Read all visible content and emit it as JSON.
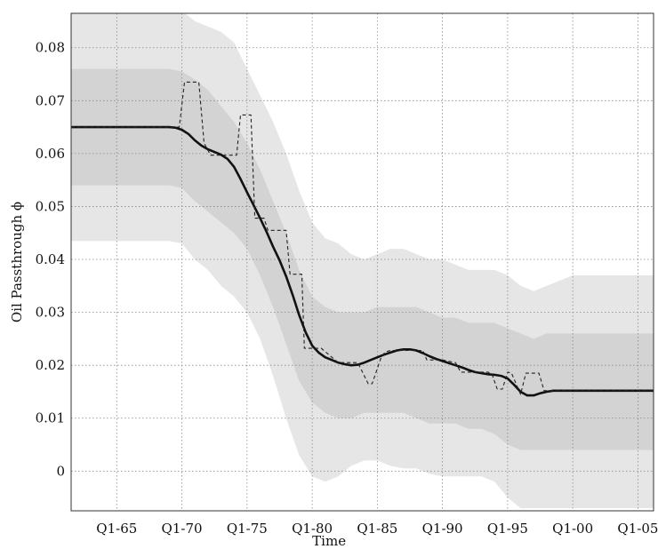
{
  "chart_data": {
    "type": "line",
    "title": "",
    "xlabel": "Time",
    "ylabel": "Oil Passthrough ϕ",
    "x_ticks": [
      {
        "label": "Q1-65",
        "year": 1965
      },
      {
        "label": "Q1-70",
        "year": 1970
      },
      {
        "label": "Q1-75",
        "year": 1975
      },
      {
        "label": "Q1-80",
        "year": 1980
      },
      {
        "label": "Q1-85",
        "year": 1985
      },
      {
        "label": "Q1-90",
        "year": 1990
      },
      {
        "label": "Q1-95",
        "year": 1995
      },
      {
        "label": "Q1-00",
        "year": 2000
      },
      {
        "label": "Q1-05",
        "year": 2005
      }
    ],
    "y_ticks": [
      {
        "label": "0",
        "value": 0
      },
      {
        "label": "0.01",
        "value": 0.01
      },
      {
        "label": "0.02",
        "value": 0.02
      },
      {
        "label": "0.03",
        "value": 0.03
      },
      {
        "label": "0.04",
        "value": 0.04
      },
      {
        "label": "0.05",
        "value": 0.05
      },
      {
        "label": "0.06",
        "value": 0.06
      },
      {
        "label": "0.07",
        "value": 0.07
      },
      {
        "label": "0.08",
        "value": 0.08
      }
    ],
    "xlim": [
      1961.5,
      2006.2
    ],
    "ylim": [
      -0.0075,
      0.0865
    ],
    "grid": true,
    "legend": "none",
    "colors": {
      "outer_band": "#e6e6e6",
      "inner_band": "#d3d3d3",
      "median_line": "#111111",
      "dashed_line": "#222222"
    },
    "series": [
      {
        "kind": "band_outer",
        "x": [
          1961.5,
          1965,
          1969,
          1970,
          1971,
          1972,
          1973,
          1974,
          1975,
          1976,
          1977,
          1978,
          1979,
          1980,
          1981,
          1982,
          1983,
          1984,
          1985,
          1986,
          1987,
          1988,
          1989,
          1990,
          1991,
          1992,
          1993,
          1994,
          1995,
          1996,
          1997,
          1998,
          1999,
          2000,
          2006.2
        ],
        "upper": [
          0.087,
          0.087,
          0.087,
          0.087,
          0.085,
          0.084,
          0.083,
          0.081,
          0.076,
          0.071,
          0.066,
          0.06,
          0.053,
          0.047,
          0.044,
          0.043,
          0.041,
          0.04,
          0.041,
          0.042,
          0.042,
          0.041,
          0.04,
          0.04,
          0.039,
          0.038,
          0.038,
          0.038,
          0.037,
          0.035,
          0.034,
          0.035,
          0.036,
          0.037,
          0.037
        ],
        "lower": [
          0.0435,
          0.0435,
          0.0435,
          0.043,
          0.04,
          0.038,
          0.035,
          0.033,
          0.03,
          0.025,
          0.018,
          0.01,
          0.003,
          -0.001,
          -0.002,
          -0.001,
          0.001,
          0.002,
          0.002,
          0.001,
          0.0005,
          0.0005,
          -0.0005,
          -0.001,
          -0.001,
          -0.001,
          -0.001,
          -0.002,
          -0.005,
          -0.007,
          -0.007,
          -0.007,
          -0.007,
          -0.007,
          -0.007
        ]
      },
      {
        "kind": "band_inner",
        "x": [
          1961.5,
          1965,
          1969,
          1970,
          1971,
          1972,
          1973,
          1974,
          1975,
          1976,
          1977,
          1978,
          1979,
          1980,
          1981,
          1982,
          1983,
          1984,
          1985,
          1986,
          1987,
          1988,
          1989,
          1990,
          1991,
          1992,
          1993,
          1994,
          1995,
          1996,
          1997,
          1998,
          1999,
          2000,
          2006.2
        ],
        "upper": [
          0.076,
          0.076,
          0.076,
          0.0755,
          0.074,
          0.072,
          0.069,
          0.066,
          0.062,
          0.057,
          0.051,
          0.045,
          0.038,
          0.033,
          0.031,
          0.03,
          0.03,
          0.03,
          0.031,
          0.031,
          0.031,
          0.031,
          0.03,
          0.029,
          0.029,
          0.028,
          0.028,
          0.028,
          0.027,
          0.026,
          0.025,
          0.026,
          0.026,
          0.026,
          0.026
        ],
        "lower": [
          0.054,
          0.054,
          0.054,
          0.0535,
          0.051,
          0.049,
          0.047,
          0.045,
          0.042,
          0.037,
          0.031,
          0.024,
          0.017,
          0.013,
          0.011,
          0.01,
          0.01,
          0.011,
          0.011,
          0.011,
          0.011,
          0.01,
          0.009,
          0.009,
          0.009,
          0.008,
          0.008,
          0.007,
          0.005,
          0.004,
          0.004,
          0.004,
          0.004,
          0.004,
          0.004
        ]
      },
      {
        "kind": "median_line",
        "x": [
          1961.5,
          1965,
          1969,
          1969.5,
          1970,
          1970.5,
          1971,
          1971.5,
          1972,
          1972.5,
          1973,
          1973.5,
          1974,
          1974.5,
          1975,
          1975.5,
          1976,
          1976.5,
          1977,
          1977.5,
          1978,
          1978.5,
          1979,
          1979.5,
          1980,
          1980.5,
          1981,
          1981.5,
          1982,
          1982.5,
          1983,
          1983.5,
          1984,
          1984.5,
          1985,
          1985.5,
          1986,
          1986.5,
          1987,
          1987.5,
          1988,
          1988.5,
          1989,
          1989.5,
          1990,
          1990.5,
          1991,
          1991.5,
          1992,
          1992.5,
          1993,
          1993.5,
          1994,
          1994.5,
          1995,
          1995.5,
          1996,
          1996.5,
          1997,
          1997.5,
          1998,
          1998.5,
          1999,
          2000,
          2006.2
        ],
        "y": [
          0.065,
          0.065,
          0.065,
          0.0649,
          0.0645,
          0.0637,
          0.0625,
          0.0615,
          0.0608,
          0.0603,
          0.0598,
          0.059,
          0.0575,
          0.0552,
          0.0527,
          0.0503,
          0.0478,
          0.0452,
          0.0424,
          0.0398,
          0.0368,
          0.0333,
          0.0295,
          0.0262,
          0.0237,
          0.0224,
          0.0215,
          0.021,
          0.0205,
          0.0202,
          0.02,
          0.0201,
          0.0205,
          0.021,
          0.0215,
          0.022,
          0.0224,
          0.0228,
          0.023,
          0.023,
          0.0228,
          0.0223,
          0.0217,
          0.0212,
          0.0208,
          0.0204,
          0.02,
          0.0196,
          0.0191,
          0.0187,
          0.0185,
          0.0183,
          0.0182,
          0.018,
          0.0175,
          0.0163,
          0.015,
          0.0143,
          0.0143,
          0.0147,
          0.015,
          0.0152,
          0.0152,
          0.0152,
          0.0152
        ]
      },
      {
        "kind": "dashed_line",
        "x": [
          1961.5,
          1969.8,
          1970.2,
          1970.5,
          1971.3,
          1971.7,
          1972.2,
          1974.2,
          1974.5,
          1975.3,
          1975.6,
          1976.3,
          1976.6,
          1978.0,
          1978.3,
          1979.2,
          1979.4,
          1980.4,
          1980.7,
          1982.0,
          1983.5,
          1984.3,
          1984.6,
          1985.3,
          1985.6,
          1986.0,
          1987.5,
          1988.5,
          1988.8,
          1990.0,
          1991.0,
          1991.4,
          1993.5,
          1993.8,
          1994.2,
          1994.6,
          1995.0,
          1995.3,
          1996.0,
          1996.4,
          1997.4,
          1997.8,
          2006.2
        ],
        "y": [
          0.065,
          0.065,
          0.0735,
          0.0735,
          0.0735,
          0.062,
          0.0597,
          0.0597,
          0.0673,
          0.0673,
          0.0478,
          0.0478,
          0.0455,
          0.0455,
          0.0372,
          0.0372,
          0.0232,
          0.0232,
          0.0232,
          0.0205,
          0.0205,
          0.0165,
          0.0165,
          0.0215,
          0.0225,
          0.0228,
          0.0228,
          0.0228,
          0.021,
          0.021,
          0.0205,
          0.0187,
          0.0187,
          0.0183,
          0.0155,
          0.0155,
          0.0187,
          0.0185,
          0.0145,
          0.0185,
          0.0185,
          0.0152,
          0.0152
        ]
      }
    ]
  }
}
